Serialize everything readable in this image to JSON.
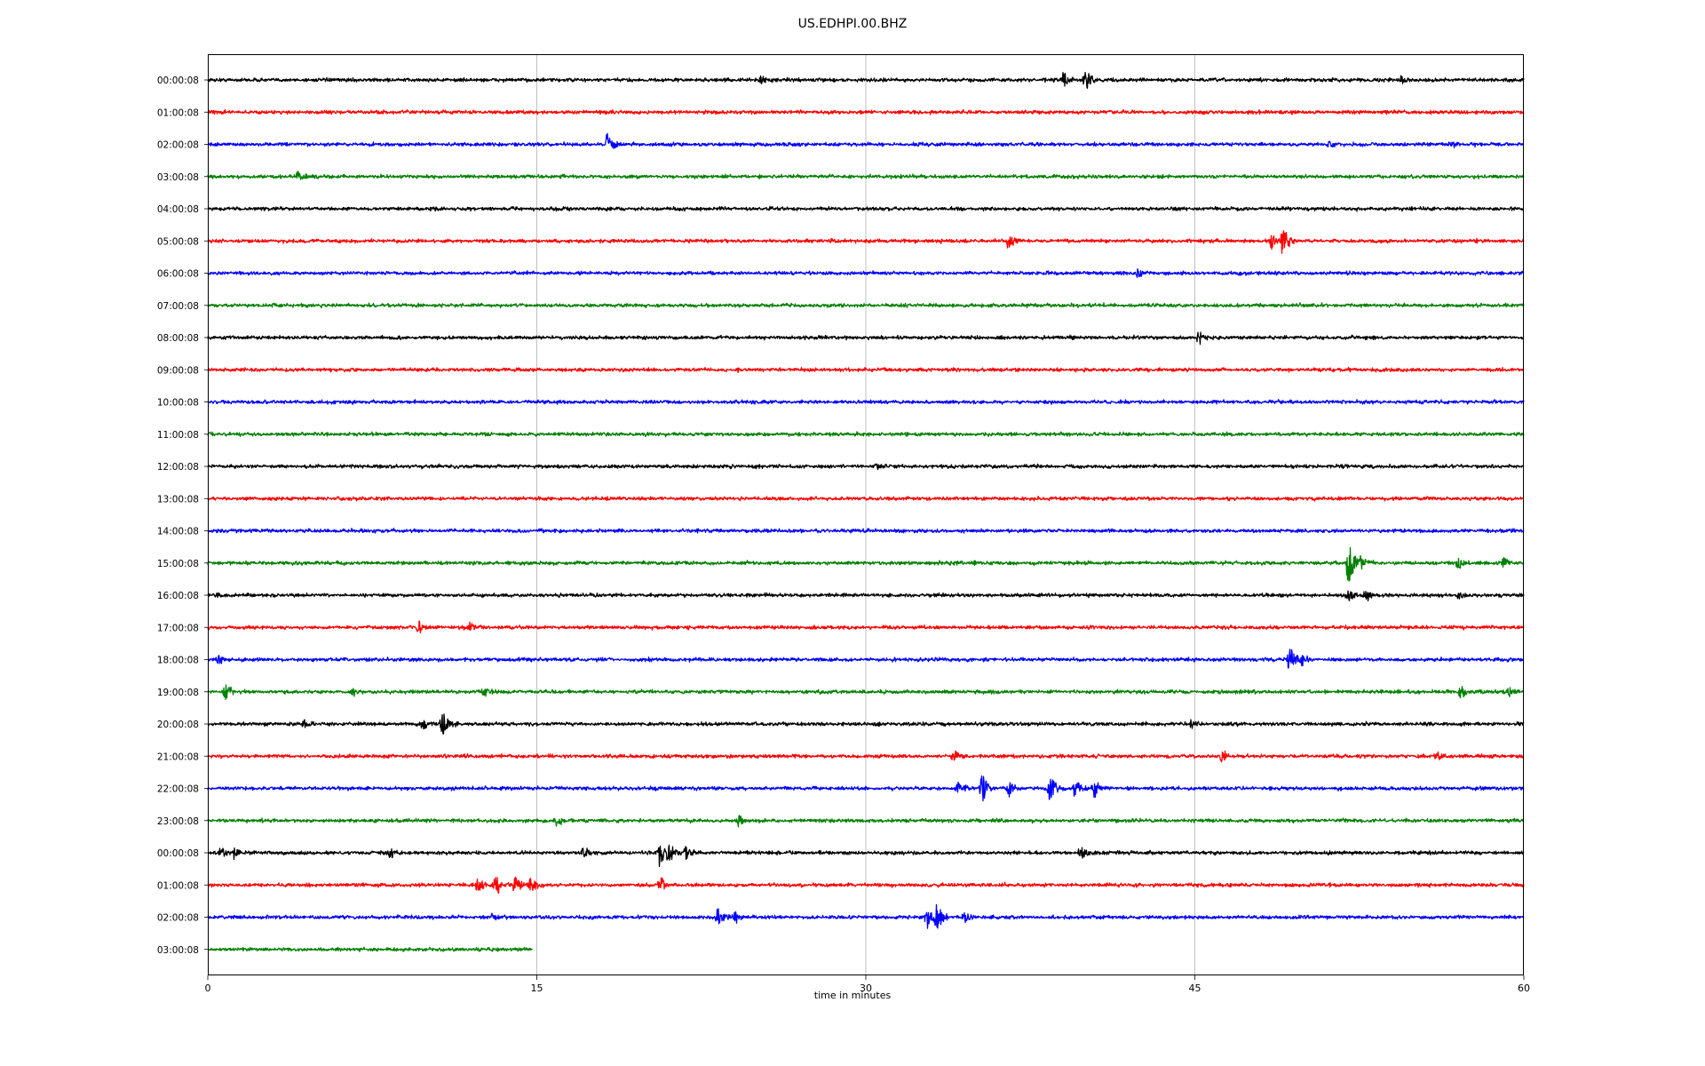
{
  "chart_data": {
    "type": "line",
    "title": "US.EDHPI.00.BHZ",
    "xlabel": "time in minutes",
    "ylabel": "",
    "xlim": [
      0,
      60
    ],
    "x_ticks": [
      "0",
      "15",
      "30",
      "45",
      "60"
    ],
    "grid": "vertical",
    "colors": [
      "#000000",
      "#ff0000",
      "#0000ff",
      "#008000"
    ],
    "rows": [
      {
        "label": "00:00:08",
        "color": "#000000",
        "end_minute": 60,
        "events": [
          {
            "t": 25.2,
            "amp": 0.3
          },
          {
            "t": 39.0,
            "amp": 0.45
          },
          {
            "t": 40.0,
            "amp": 0.6
          },
          {
            "t": 54.4,
            "amp": 0.25
          }
        ]
      },
      {
        "label": "01:00:08",
        "color": "#ff0000",
        "end_minute": 60,
        "events": []
      },
      {
        "label": "02:00:08",
        "color": "#0000ff",
        "end_minute": 60,
        "events": [
          {
            "t": 18.2,
            "amp": 0.7
          },
          {
            "t": 51.1,
            "amp": 0.2
          },
          {
            "t": 56.7,
            "amp": 0.15
          }
        ]
      },
      {
        "label": "03:00:08",
        "color": "#008000",
        "end_minute": 60,
        "events": [
          {
            "t": 4.1,
            "amp": 0.25
          }
        ]
      },
      {
        "label": "04:00:08",
        "color": "#000000",
        "end_minute": 60,
        "events": []
      },
      {
        "label": "05:00:08",
        "color": "#ff0000",
        "end_minute": 60,
        "events": [
          {
            "t": 36.5,
            "amp": 0.45
          },
          {
            "t": 48.5,
            "amp": 0.4
          },
          {
            "t": 49.0,
            "amp": 0.95
          }
        ]
      },
      {
        "label": "06:00:08",
        "color": "#0000ff",
        "end_minute": 60,
        "events": [
          {
            "t": 42.4,
            "amp": 0.25
          }
        ]
      },
      {
        "label": "07:00:08",
        "color": "#008000",
        "end_minute": 60,
        "events": []
      },
      {
        "label": "08:00:08",
        "color": "#000000",
        "end_minute": 60,
        "events": [
          {
            "t": 45.2,
            "amp": 0.45
          }
        ]
      },
      {
        "label": "09:00:08",
        "color": "#ff0000",
        "end_minute": 60,
        "events": []
      },
      {
        "label": "10:00:08",
        "color": "#0000ff",
        "end_minute": 60,
        "events": []
      },
      {
        "label": "11:00:08",
        "color": "#008000",
        "end_minute": 60,
        "events": []
      },
      {
        "label": "12:00:08",
        "color": "#000000",
        "end_minute": 60,
        "events": [
          {
            "t": 30.5,
            "amp": 0.2
          }
        ]
      },
      {
        "label": "13:00:08",
        "color": "#ff0000",
        "end_minute": 60,
        "events": []
      },
      {
        "label": "14:00:08",
        "color": "#0000ff",
        "end_minute": 60,
        "events": []
      },
      {
        "label": "15:00:08",
        "color": "#008000",
        "end_minute": 60,
        "events": [
          {
            "t": 52.0,
            "amp": 1.3
          },
          {
            "t": 52.6,
            "amp": 0.5
          },
          {
            "t": 57.0,
            "amp": 0.35
          },
          {
            "t": 59.1,
            "amp": 0.35
          }
        ]
      },
      {
        "label": "16:00:08",
        "color": "#000000",
        "end_minute": 60,
        "events": [
          {
            "t": 52.0,
            "amp": 0.35
          },
          {
            "t": 52.8,
            "amp": 0.3
          },
          {
            "t": 57.0,
            "amp": 0.3
          }
        ]
      },
      {
        "label": "17:00:08",
        "color": "#ff0000",
        "end_minute": 60,
        "events": [
          {
            "t": 9.6,
            "amp": 0.35
          },
          {
            "t": 12.0,
            "amp": 0.4
          }
        ]
      },
      {
        "label": "18:00:08",
        "color": "#0000ff",
        "end_minute": 60,
        "events": [
          {
            "t": 0.5,
            "amp": 0.3
          },
          {
            "t": 49.3,
            "amp": 0.8
          },
          {
            "t": 49.9,
            "amp": 0.3
          }
        ]
      },
      {
        "label": "19:00:08",
        "color": "#008000",
        "end_minute": 60,
        "events": [
          {
            "t": 0.8,
            "amp": 0.45
          },
          {
            "t": 6.6,
            "amp": 0.25
          },
          {
            "t": 12.6,
            "amp": 0.3
          },
          {
            "t": 57.1,
            "amp": 0.4
          },
          {
            "t": 59.3,
            "amp": 0.3
          }
        ]
      },
      {
        "label": "20:00:08",
        "color": "#000000",
        "end_minute": 60,
        "events": [
          {
            "t": 4.4,
            "amp": 0.25
          },
          {
            "t": 9.8,
            "amp": 0.3
          },
          {
            "t": 10.7,
            "amp": 0.75
          },
          {
            "t": 44.8,
            "amp": 0.25
          }
        ]
      },
      {
        "label": "21:00:08",
        "color": "#ff0000",
        "end_minute": 60,
        "events": [
          {
            "t": 34.0,
            "amp": 0.4
          },
          {
            "t": 46.2,
            "amp": 0.35
          },
          {
            "t": 56.0,
            "amp": 0.2
          }
        ]
      },
      {
        "label": "22:00:08",
        "color": "#0000ff",
        "end_minute": 60,
        "events": [
          {
            "t": 34.2,
            "amp": 0.35
          },
          {
            "t": 35.3,
            "amp": 0.85
          },
          {
            "t": 36.5,
            "amp": 0.5
          },
          {
            "t": 38.4,
            "amp": 0.8
          },
          {
            "t": 39.5,
            "amp": 0.5
          },
          {
            "t": 40.4,
            "amp": 0.5
          }
        ]
      },
      {
        "label": "23:00:08",
        "color": "#008000",
        "end_minute": 60,
        "events": [
          {
            "t": 15.9,
            "amp": 0.35
          },
          {
            "t": 24.2,
            "amp": 0.3
          }
        ]
      },
      {
        "label": "00:00:08",
        "color": "#000000",
        "end_minute": 60,
        "events": [
          {
            "t": 0.6,
            "amp": 0.4
          },
          {
            "t": 1.2,
            "amp": 0.35
          },
          {
            "t": 8.3,
            "amp": 0.3
          },
          {
            "t": 17.1,
            "amp": 0.35
          },
          {
            "t": 20.6,
            "amp": 0.75
          },
          {
            "t": 21.0,
            "amp": 0.6
          },
          {
            "t": 21.8,
            "amp": 0.45
          },
          {
            "t": 39.8,
            "amp": 0.4
          }
        ]
      },
      {
        "label": "01:00:08",
        "color": "#ff0000",
        "end_minute": 60,
        "events": [
          {
            "t": 12.3,
            "amp": 0.5
          },
          {
            "t": 13.1,
            "amp": 0.6
          },
          {
            "t": 14.0,
            "amp": 0.5
          },
          {
            "t": 14.7,
            "amp": 0.45
          },
          {
            "t": 20.6,
            "amp": 0.6
          }
        ]
      },
      {
        "label": "02:00:08",
        "color": "#0000ff",
        "end_minute": 60,
        "events": [
          {
            "t": 13.0,
            "amp": 0.3
          },
          {
            "t": 23.2,
            "amp": 0.6
          },
          {
            "t": 24.0,
            "amp": 0.4
          },
          {
            "t": 32.8,
            "amp": 0.7
          },
          {
            "t": 33.2,
            "amp": 0.85
          },
          {
            "t": 34.5,
            "amp": 0.35
          }
        ]
      },
      {
        "label": "03:00:08",
        "color": "#008000",
        "end_minute": 14.8,
        "events": []
      }
    ]
  }
}
